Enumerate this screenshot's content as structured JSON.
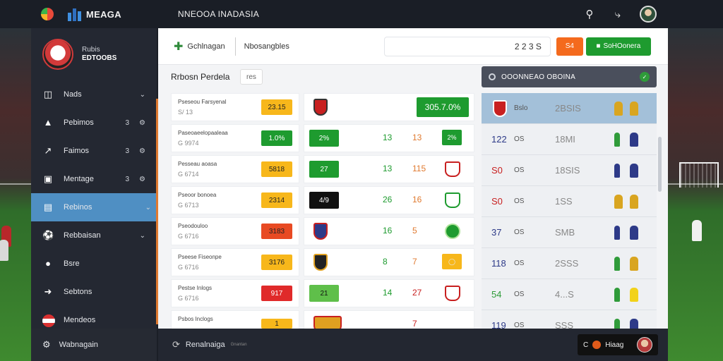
{
  "header": {
    "brand": "MEAGA",
    "title": "NNEOOA INADASIA"
  },
  "profile": {
    "line1": "Rubis",
    "line2": "EDTOOBS"
  },
  "sidebar": {
    "items": [
      {
        "label": "Nads",
        "badge": "",
        "icon": "clipboard-icon"
      },
      {
        "label": "Pebimos",
        "badge": "3",
        "icon": "grad-cap-icon"
      },
      {
        "label": "Faimos",
        "badge": "3",
        "icon": "chart-icon"
      },
      {
        "label": "Mentage",
        "badge": "3",
        "icon": "calendar-icon"
      },
      {
        "label": "Rebinos",
        "badge": "",
        "icon": "list-icon"
      },
      {
        "label": "Rebbaisan",
        "badge": "",
        "icon": "soccer-ball-icon"
      },
      {
        "label": "Bsre",
        "badge": "",
        "icon": "chat-icon"
      },
      {
        "label": "Sebtons",
        "badge": "",
        "icon": "pin-icon"
      },
      {
        "label": "Mendeos",
        "badge": "",
        "icon": "flag-icon"
      }
    ],
    "footer_label": "Wabnagain"
  },
  "main": {
    "header_title": "Gchlnagan",
    "header_sub": "Nbosangbles",
    "header_value": "2 2 3 S",
    "orange_btn": "S4",
    "green_btn": "SoHOonera",
    "section_title": "Rrbosn Perdela",
    "tag": "res",
    "rows": [
      {
        "name": "Pseseou Farsyenal",
        "sub": "S/ 13",
        "pill": "23.15",
        "pill_color": "#f7b71b",
        "n1": "",
        "n2": "",
        "big": "305.7.0%"
      },
      {
        "name": "Paseoaeelopaaleaa",
        "sub": "G 9974",
        "pill": "1.0%",
        "pill_color": "#1e9b2f",
        "badge2": "2%",
        "badge2_color": "#1e9b2f",
        "n1": "13",
        "n2": "13",
        "endsq": "2%"
      },
      {
        "name": "Pesseau aoasa",
        "sub": "G 6714",
        "pill": "5818",
        "pill_color": "#f7b71b",
        "badge2": "27",
        "badge2_color": "#1e9b2f",
        "n1": "13",
        "n2": "115"
      },
      {
        "name": "Pseoor bonoea",
        "sub": "G 6713",
        "pill": "2314",
        "pill_color": "#f7b71b",
        "badge2": "4/9",
        "badge2_color": "#111",
        "n1": "26",
        "n2": "16"
      },
      {
        "name": "Pseodouloo",
        "sub": "G 6716",
        "pill": "3183",
        "pill_color": "#e84a23",
        "n1": "16",
        "n2": "5"
      },
      {
        "name": "Pseese Fiseonpe",
        "sub": "G 6716",
        "pill": "3176",
        "pill_color": "#f7b71b",
        "n1": "8",
        "n2": "7"
      },
      {
        "name": "Pestse Inlogs",
        "sub": "G 6716",
        "pill": "917",
        "pill_color": "#e02a2a",
        "badge2": "21",
        "badge2_color": "#5fbf4a",
        "n1": "14",
        "n2": "27"
      },
      {
        "name": "Psbos Inclogs",
        "sub": "",
        "pill": "1",
        "pill_color": "#f7b71b",
        "n1": "",
        "n2": "7"
      }
    ]
  },
  "standings": {
    "title": "OOONNEAO OBOINA",
    "rows": [
      {
        "a": "Bslo",
        "b": "2BSIS"
      },
      {
        "a": "122",
        "a2": "OS",
        "b": "18MI"
      },
      {
        "a": "S0",
        "a2": "OS",
        "b": "18SIS"
      },
      {
        "a": "S0",
        "a2": "OS",
        "b": "1SS"
      },
      {
        "a": "37",
        "a2": "OS",
        "b": "SMB"
      },
      {
        "a": "118",
        "a2": "OS",
        "b": "2SSS"
      },
      {
        "a": "54",
        "a2": "OS",
        "b": "4...S"
      },
      {
        "a": "119",
        "a2": "OS",
        "b": "SSS"
      }
    ]
  },
  "bottom": {
    "label": "Renalnaiga",
    "sub": "Gnantan",
    "chip": "Hiaag"
  }
}
